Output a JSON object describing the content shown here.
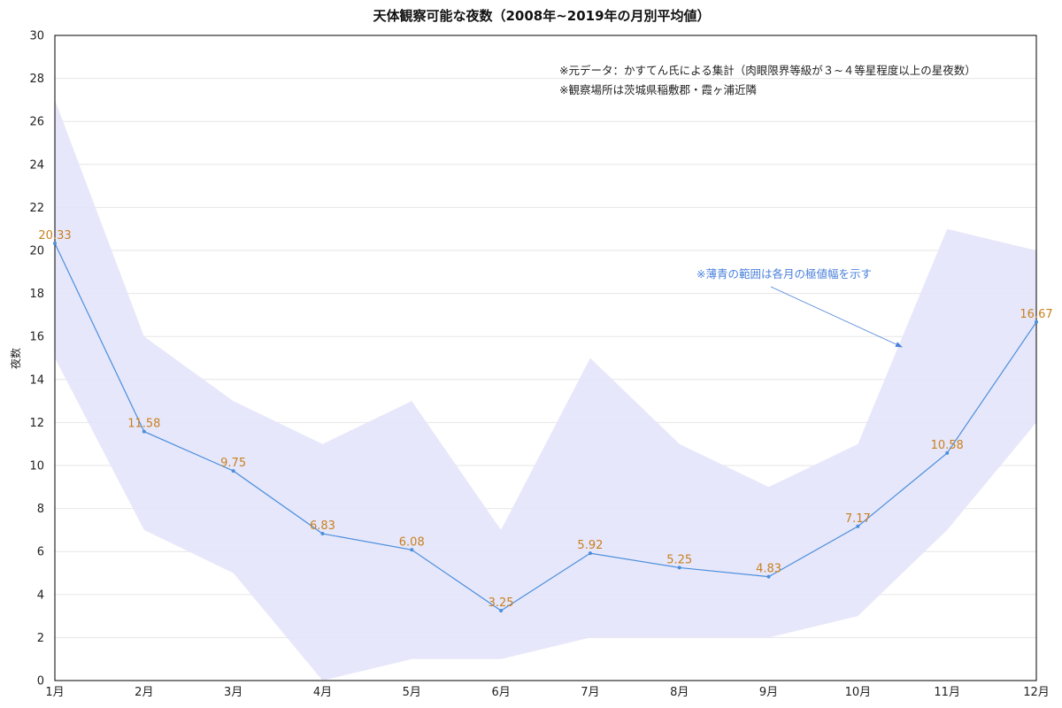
{
  "chart_data": {
    "type": "line",
    "title": "天体観察可能な夜数（2008年~2019年の月別平均値）",
    "ylabel": "夜数",
    "categories": [
      "1月",
      "2月",
      "3月",
      "4月",
      "5月",
      "6月",
      "7月",
      "8月",
      "9月",
      "10月",
      "11月",
      "12月"
    ],
    "ylim": [
      0,
      30
    ],
    "yticks": [
      0,
      2,
      4,
      6,
      8,
      10,
      12,
      14,
      16,
      18,
      20,
      22,
      24,
      26,
      28,
      30
    ],
    "grid": true,
    "legend": "none",
    "series": [
      {
        "values": [
          20.33,
          11.58,
          9.75,
          6.83,
          6.08,
          3.25,
          5.92,
          5.25,
          4.83,
          7.17,
          10.58,
          16.67
        ]
      }
    ],
    "range": {
      "upper": [
        27,
        16,
        13,
        11,
        13,
        7,
        15,
        11,
        9,
        11,
        21,
        20
      ],
      "lower": [
        15,
        7,
        5,
        0,
        1,
        1,
        2,
        2,
        2,
        3,
        7,
        12
      ]
    },
    "notes": [
      "※元データ：かすてん氏による集計（肉眼限界等級が３~４等星程度以上の星夜数）",
      "※観察場所は茨城県稲敷郡・霞ヶ浦近隣"
    ],
    "range_note": "※薄青の範囲は各月の極値幅を示す",
    "colors": {
      "line": "#4a8fdc",
      "band": "#e4e4fb",
      "data_label": "#c8801e",
      "note_highlight": "#4a80db",
      "grid": "#e6e6e6",
      "frame": "#000000"
    }
  }
}
